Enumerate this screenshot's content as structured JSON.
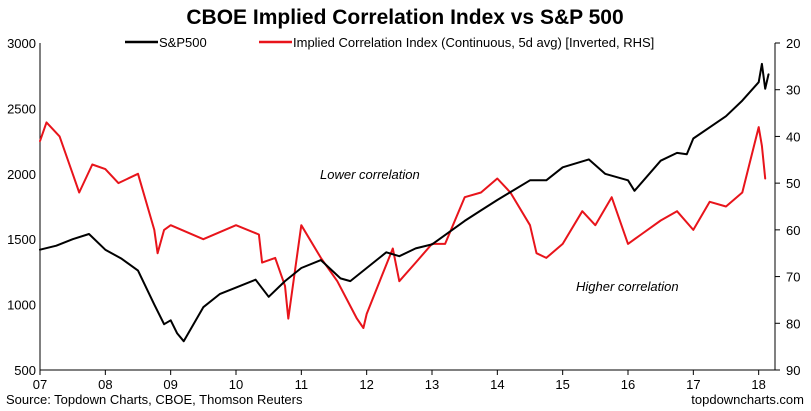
{
  "chart_data": {
    "type": "line",
    "title": "CBOE Implied Correlation Index vs S&P 500",
    "xlabel": "",
    "ylabel": "",
    "x_ticks": [
      "07",
      "08",
      "09",
      "10",
      "11",
      "12",
      "13",
      "14",
      "15",
      "16",
      "17",
      "18"
    ],
    "x_range": [
      2007,
      2018.25
    ],
    "y_left": {
      "ticks": [
        "3000",
        "2500",
        "2000",
        "1500",
        "1000",
        "500"
      ],
      "ylim": [
        500,
        3000
      ]
    },
    "y_right": {
      "ticks": [
        "20",
        "30",
        "40",
        "50",
        "60",
        "70",
        "80",
        "90"
      ],
      "ylim": [
        20,
        90
      ],
      "inverted": true
    },
    "legend": {
      "position": "top",
      "entries": [
        "S&P500",
        "Implied Correlation Index (Continuous, 5d avg) [Inverted, RHS]"
      ]
    },
    "grid": false,
    "annotations": [
      {
        "text": "Lower correlation",
        "x": 2012.2,
        "y_left": 2000
      },
      {
        "text": "Higher correlation",
        "x": 2015.9,
        "y_left": 1130
      }
    ],
    "series": [
      {
        "name": "S&P500",
        "axis": "left",
        "color": "#000000",
        "x": [
          2007.0,
          2007.25,
          2007.5,
          2007.75,
          2008.0,
          2008.25,
          2008.5,
          2008.75,
          2008.9,
          2009.0,
          2009.1,
          2009.2,
          2009.5,
          2009.75,
          2010.0,
          2010.3,
          2010.5,
          2010.75,
          2011.0,
          2011.3,
          2011.6,
          2011.75,
          2012.0,
          2012.3,
          2012.5,
          2012.75,
          2013.0,
          2013.5,
          2013.75,
          2014.0,
          2014.5,
          2014.75,
          2015.0,
          2015.4,
          2015.65,
          2016.0,
          2016.1,
          2016.5,
          2016.75,
          2016.9,
          2017.0,
          2017.5,
          2017.75,
          2018.0,
          2018.05,
          2018.1,
          2018.15
        ],
        "values": [
          1420,
          1450,
          1500,
          1540,
          1420,
          1350,
          1260,
          1000,
          850,
          880,
          780,
          720,
          980,
          1080,
          1130,
          1190,
          1060,
          1180,
          1280,
          1340,
          1200,
          1180,
          1280,
          1400,
          1370,
          1430,
          1460,
          1640,
          1720,
          1800,
          1950,
          1950,
          2050,
          2110,
          2000,
          1950,
          1870,
          2100,
          2160,
          2150,
          2270,
          2440,
          2560,
          2700,
          2840,
          2650,
          2760
        ]
      },
      {
        "name": "Implied Correlation Index (Continuous, 5d avg) [Inverted, RHS]",
        "axis": "right",
        "color": "#e8141b",
        "x": [
          2007.0,
          2007.1,
          2007.3,
          2007.5,
          2007.6,
          2007.8,
          2008.0,
          2008.2,
          2008.5,
          2008.75,
          2008.8,
          2008.9,
          2009.0,
          2009.5,
          2010.0,
          2010.35,
          2010.4,
          2010.6,
          2010.75,
          2010.8,
          2011.0,
          2011.3,
          2011.55,
          2011.7,
          2011.85,
          2011.95,
          2012.0,
          2012.2,
          2012.4,
          2012.5,
          2012.75,
          2013.0,
          2013.2,
          2013.5,
          2013.75,
          2014.0,
          2014.2,
          2014.5,
          2014.6,
          2014.75,
          2015.0,
          2015.3,
          2015.5,
          2015.75,
          2016.0,
          2016.2,
          2016.5,
          2016.75,
          2017.0,
          2017.25,
          2017.5,
          2017.75,
          2018.0,
          2018.05,
          2018.1
        ],
        "values": [
          41,
          37,
          40,
          48,
          52,
          46,
          47,
          50,
          48,
          60,
          65,
          60,
          59,
          62,
          59,
          61,
          67,
          66,
          72,
          79,
          59,
          66,
          71,
          75,
          79,
          81,
          78,
          71,
          64,
          71,
          67,
          63,
          63,
          53,
          52,
          49,
          52,
          59,
          65,
          66,
          63,
          56,
          59,
          53,
          63,
          61,
          58,
          56,
          60,
          54,
          55,
          52,
          38,
          42,
          49
        ]
      }
    ]
  },
  "footer": {
    "source": "Source: Topdown Charts, CBOE, Thomson Reuters",
    "brand": "topdowncharts.com"
  }
}
